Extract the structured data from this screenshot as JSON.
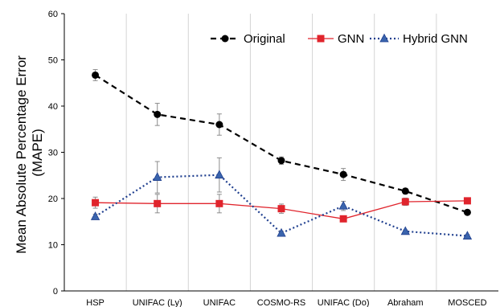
{
  "chart_data": {
    "type": "line",
    "ylabel_lines": [
      "Mean Absolute Percentage Error",
      "(MAPE)"
    ],
    "categories": [
      "HSP",
      "UNIFAC (Ly)",
      "UNIFAC",
      "COSMO-RS",
      "UNIFAC (Do)",
      "Abraham",
      "MOSCED"
    ],
    "ylim": [
      0,
      60
    ],
    "yticks": [
      0,
      10,
      20,
      30,
      40,
      50,
      60
    ],
    "grid": "vertical separators between categories",
    "legend_position": "top-right",
    "series": [
      {
        "name": "Original",
        "color": "#000000",
        "marker": "circle",
        "line_style": "dashed",
        "values": [
          46.7,
          38.2,
          36.0,
          28.2,
          25.2,
          21.6,
          17.0
        ],
        "errors": [
          1.2,
          2.4,
          2.3,
          0.8,
          1.3,
          0.6,
          0.4
        ]
      },
      {
        "name": "GNN",
        "color": "#e0242c",
        "marker": "square",
        "line_style": "solid",
        "values": [
          19.1,
          18.9,
          18.9,
          17.8,
          15.6,
          19.3,
          19.5
        ],
        "errors": [
          1.2,
          2.0,
          2.0,
          1.0,
          0.4,
          0.8,
          0.3
        ]
      },
      {
        "name": "Hybrid GNN",
        "color": "#1f3f8f",
        "marker": "triangle",
        "line_style": "dotted",
        "values": [
          16.1,
          24.6,
          25.1,
          12.5,
          18.4,
          12.9,
          11.9
        ],
        "errors": [
          0.5,
          3.4,
          3.7,
          0.4,
          1.0,
          0.3,
          0.3
        ]
      }
    ]
  }
}
